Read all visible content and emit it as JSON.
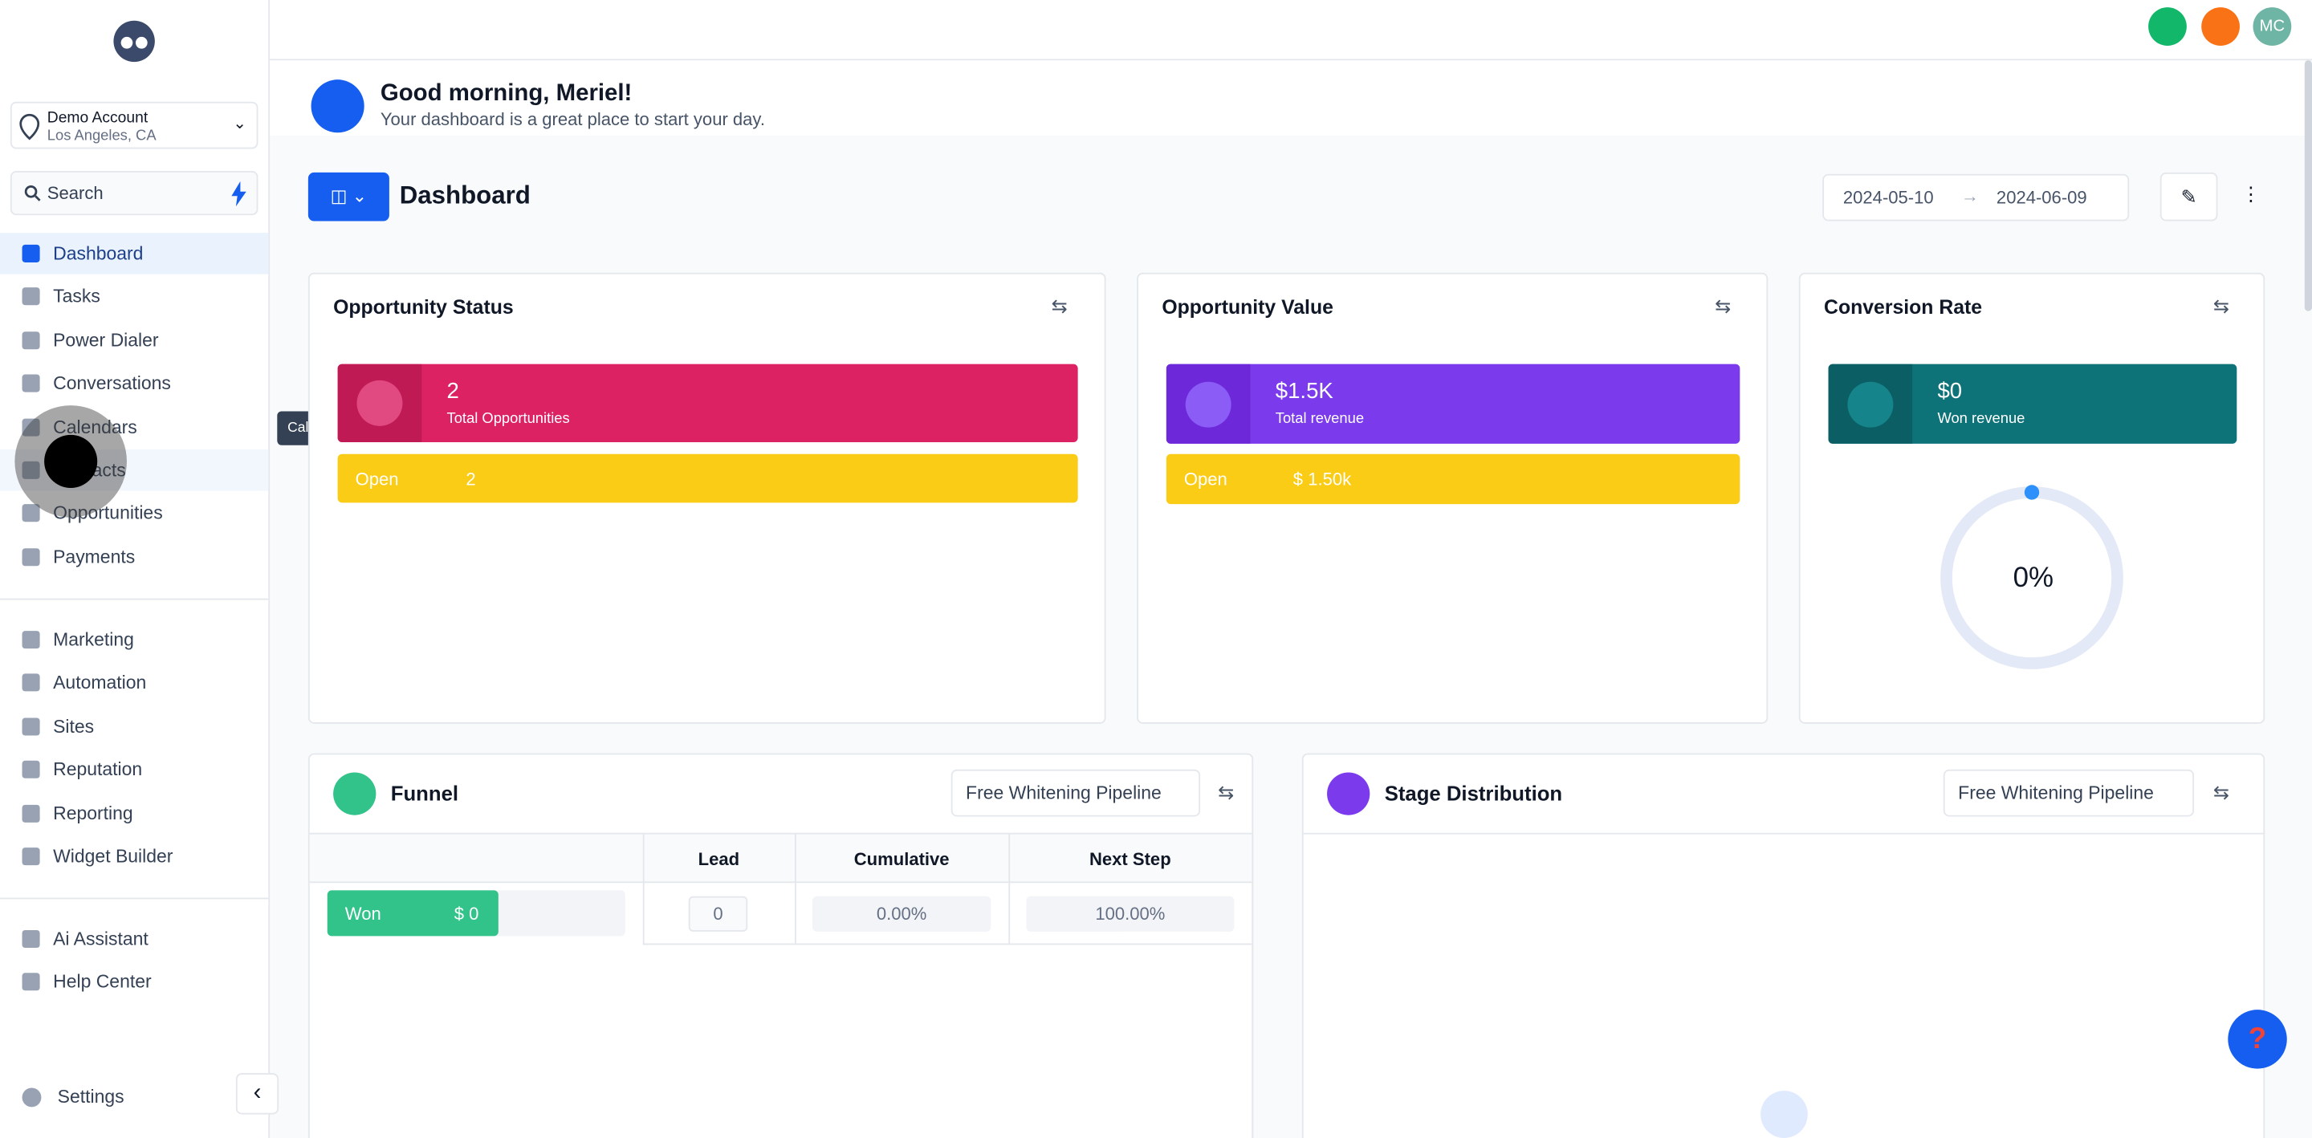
{
  "sidebar": {
    "account": {
      "name": "Demo Account",
      "location": "Los Angeles, CA"
    },
    "search": "Search",
    "groups": [
      [
        "Dashboard",
        "Tasks",
        "Power Dialer",
        "Conversations",
        "Calendars",
        "Contacts",
        "Opportunities",
        "Payments"
      ],
      [
        "Marketing",
        "Automation",
        "Sites",
        "Reputation",
        "Reporting",
        "Widget Builder"
      ],
      [
        "Ai Assistant",
        "Help Center"
      ]
    ],
    "settings": "Settings",
    "tooltip": "Calendars"
  },
  "topbar": {
    "avatar": "MC"
  },
  "header": {
    "greeting": "Good morning, Meriel!",
    "subtitle": "Your dashboard is a great place to start your day.",
    "title": "Dashboard",
    "date_from": "2024-05-10",
    "date_to": "2024-06-09"
  },
  "cards": [
    {
      "title": "Opportunity Status",
      "value": "2",
      "label": "Total Opportunities",
      "status": "Open",
      "status_value": "2"
    },
    {
      "title": "Opportunity Value",
      "value": "$1.5K",
      "label": "Total revenue",
      "status": "Open",
      "status_value": "$ 1.50k"
    },
    {
      "title": "Conversion Rate",
      "value": "$0",
      "label": "Won revenue",
      "rate": "0%"
    }
  ],
  "funnel": {
    "title": "Funnel",
    "pipeline": "Free Whitening Pipeline",
    "headers": [
      "Lead",
      "Cumulative",
      "Next Step"
    ],
    "row": {
      "stage": "Won",
      "amount": "$ 0",
      "lead": "0",
      "cumulative": "0.00%",
      "next_step": "100.00%"
    }
  },
  "stage_distribution": {
    "title": "Stage Distribution",
    "pipeline": "Free Whitening Pipeline"
  }
}
